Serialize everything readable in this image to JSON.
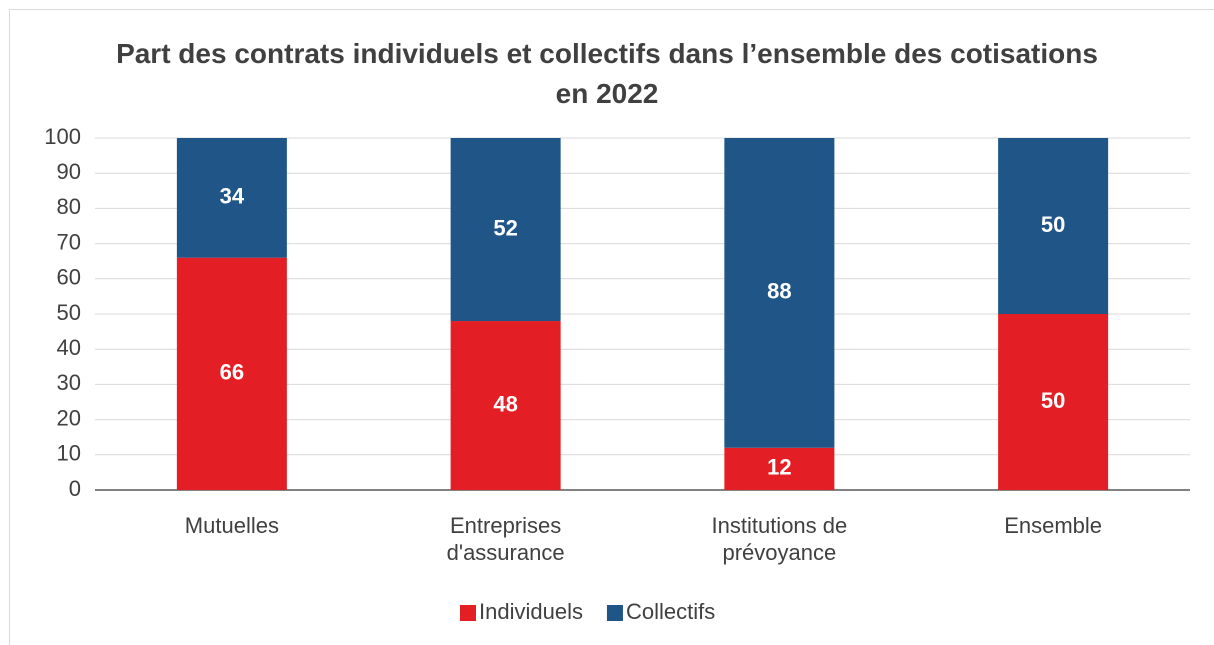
{
  "chart_data": {
    "type": "stacked_bar",
    "title": "Part des contrats individuels et collectifs dans l’ensemble des cotisations en 2022",
    "categories": [
      "Mutuelles",
      "Entreprises d'assurance",
      "Institutions de prévoyance",
      "Ensemble"
    ],
    "series": [
      {
        "name": "Individuels",
        "color": "#e31e24",
        "values": [
          66,
          48,
          12,
          50
        ]
      },
      {
        "name": "Collectifs",
        "color": "#1f5587",
        "values": [
          34,
          52,
          88,
          50
        ]
      }
    ],
    "ylim": [
      0,
      100
    ],
    "yticks": [
      0,
      10,
      20,
      30,
      40,
      50,
      60,
      70,
      80,
      90,
      100
    ],
    "grid": true,
    "legend": "bottom"
  }
}
